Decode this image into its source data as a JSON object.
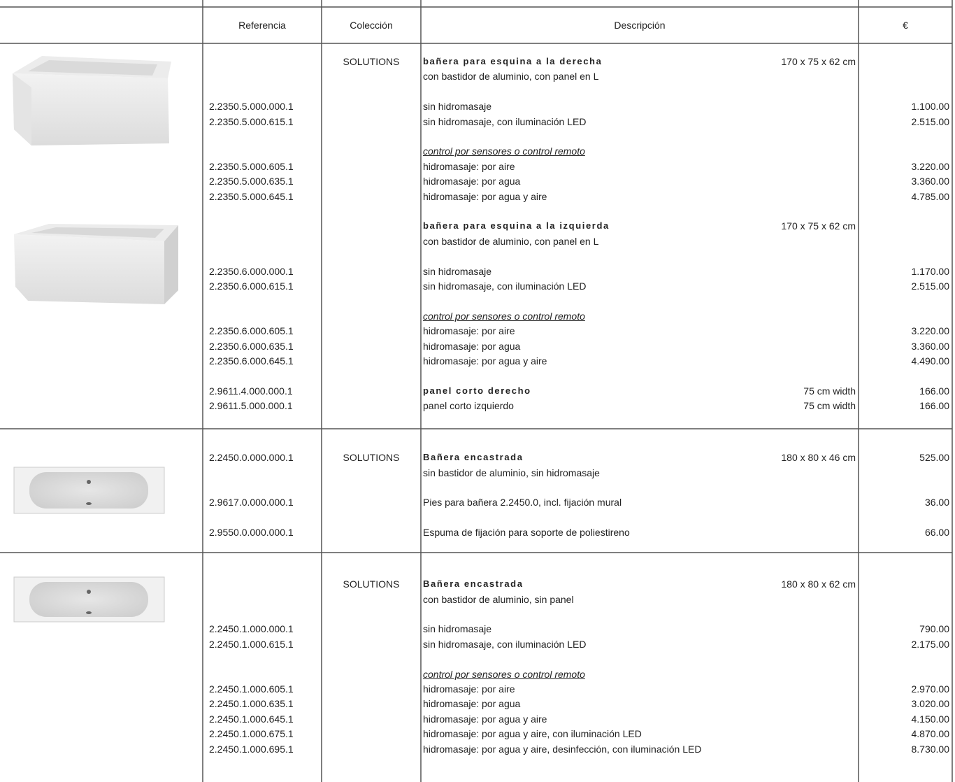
{
  "header": {
    "reference": "Referencia",
    "collection": "Colección",
    "description": "Descripción",
    "price": "€"
  },
  "sections": [
    {
      "blocks": [
        {
          "heading": {
            "collection": "SOLUTIONS",
            "text": "bañera para esquina a la derecha",
            "dimensions": "170 x 75 x 62 cm"
          },
          "items": [
            {
              "text": "con bastidor de aluminio, con panel en L"
            }
          ]
        },
        {
          "items": [
            {
              "ref": "2.2350.5.000.000.1",
              "text": "sin hidromasaje",
              "price": "1.100.00"
            },
            {
              "ref": "2.2350.5.000.615.1",
              "text": "sin hidromasaje, con iluminación LED",
              "price": "2.515.00"
            }
          ]
        },
        {
          "note": "control por sensores o control remoto",
          "items": [
            {
              "ref": "2.2350.5.000.605.1",
              "text": "hidromasaje: por aire",
              "price": "3.220.00"
            },
            {
              "ref": "2.2350.5.000.635.1",
              "text": "hidromasaje: por agua",
              "price": "3.360.00"
            },
            {
              "ref": "2.2350.5.000.645.1",
              "text": "hidromasaje: por agua y aire",
              "price": "4.785.00"
            }
          ]
        },
        {
          "heading": {
            "text": "bañera para esquina a la izquierda",
            "dimensions": "170 x 75 x 62 cm"
          },
          "items": [
            {
              "text": "con bastidor de aluminio, con panel en L"
            }
          ]
        },
        {
          "items": [
            {
              "ref": "2.2350.6.000.000.1",
              "text": "sin hidromasaje",
              "price": "1.170.00"
            },
            {
              "ref": "2.2350.6.000.615.1",
              "text": "sin hidromasaje, con iluminación LED",
              "price": "2.515.00"
            }
          ]
        },
        {
          "note": "control por sensores o control remoto",
          "items": [
            {
              "ref": "2.2350.6.000.605.1",
              "text": "hidromasaje: por aire",
              "price": "3.220.00"
            },
            {
              "ref": "2.2350.6.000.635.1",
              "text": "hidromasaje: por agua",
              "price": "3.360.00"
            },
            {
              "ref": "2.2350.6.000.645.1",
              "text": "hidromasaje: por agua y aire",
              "price": "4.490.00"
            }
          ]
        },
        {
          "heading": {
            "ref": "2.9611.4.000.000.1",
            "text": "panel corto derecho",
            "dimensions": "75 cm width",
            "price": "166.00"
          },
          "items": [
            {
              "ref": "2.9611.5.000.000.1",
              "text": "panel corto izquierdo",
              "dimensions": "75 cm width",
              "price": "166.00"
            }
          ]
        }
      ]
    },
    {
      "blocks": [
        {
          "heading": {
            "ref": "2.2450.0.000.000.1",
            "collection": "SOLUTIONS",
            "text": "Bañera encastrada",
            "dimensions": "180 x 80 x 46 cm",
            "price": "525.00"
          },
          "items": [
            {
              "text": "sin bastidor de aluminio, sin hidromasaje"
            }
          ]
        },
        {
          "items": [
            {
              "ref": "2.9617.0.000.000.1",
              "text": "Pies para bañera 2.2450.0, incl. fijación mural",
              "price": "36.00"
            }
          ]
        },
        {
          "items": [
            {
              "ref": "2.9550.0.000.000.1",
              "text": "Espuma de fijación para soporte de poliestireno",
              "price": "66.00"
            }
          ]
        }
      ]
    },
    {
      "blocks": [
        {
          "heading": {
            "collection": "SOLUTIONS",
            "text": "Bañera encastrada",
            "dimensions": "180 x 80 x 62 cm"
          },
          "items": [
            {
              "text": "con bastidor de aluminio, sin panel"
            }
          ]
        },
        {
          "items": [
            {
              "ref": "2.2450.1.000.000.1",
              "text": "sin hidromasaje",
              "price": "790.00"
            },
            {
              "ref": "2.2450.1.000.615.1",
              "text": "sin hidromasaje, con iluminación LED",
              "price": "2.175.00"
            }
          ]
        },
        {
          "note": "control por sensores o control remoto",
          "items": [
            {
              "ref": "2.2450.1.000.605.1",
              "text": "hidromasaje: por aire",
              "price": "2.970.00"
            },
            {
              "ref": "2.2450.1.000.635.1",
              "text": "hidromasaje: por agua",
              "price": "3.020.00"
            },
            {
              "ref": "2.2450.1.000.645.1",
              "text": "hidromasaje: por agua y aire",
              "price": "4.150.00"
            },
            {
              "ref": "2.2450.1.000.675.1",
              "text": "hidromasaje: por agua y aire, con iluminación LED",
              "price": "4.870.00"
            },
            {
              "ref": "2.2450.1.000.695.1",
              "text": "hidromasaje: por agua y aire, desinfección, con iluminación LED",
              "price": "8.730.00"
            }
          ]
        }
      ]
    }
  ]
}
